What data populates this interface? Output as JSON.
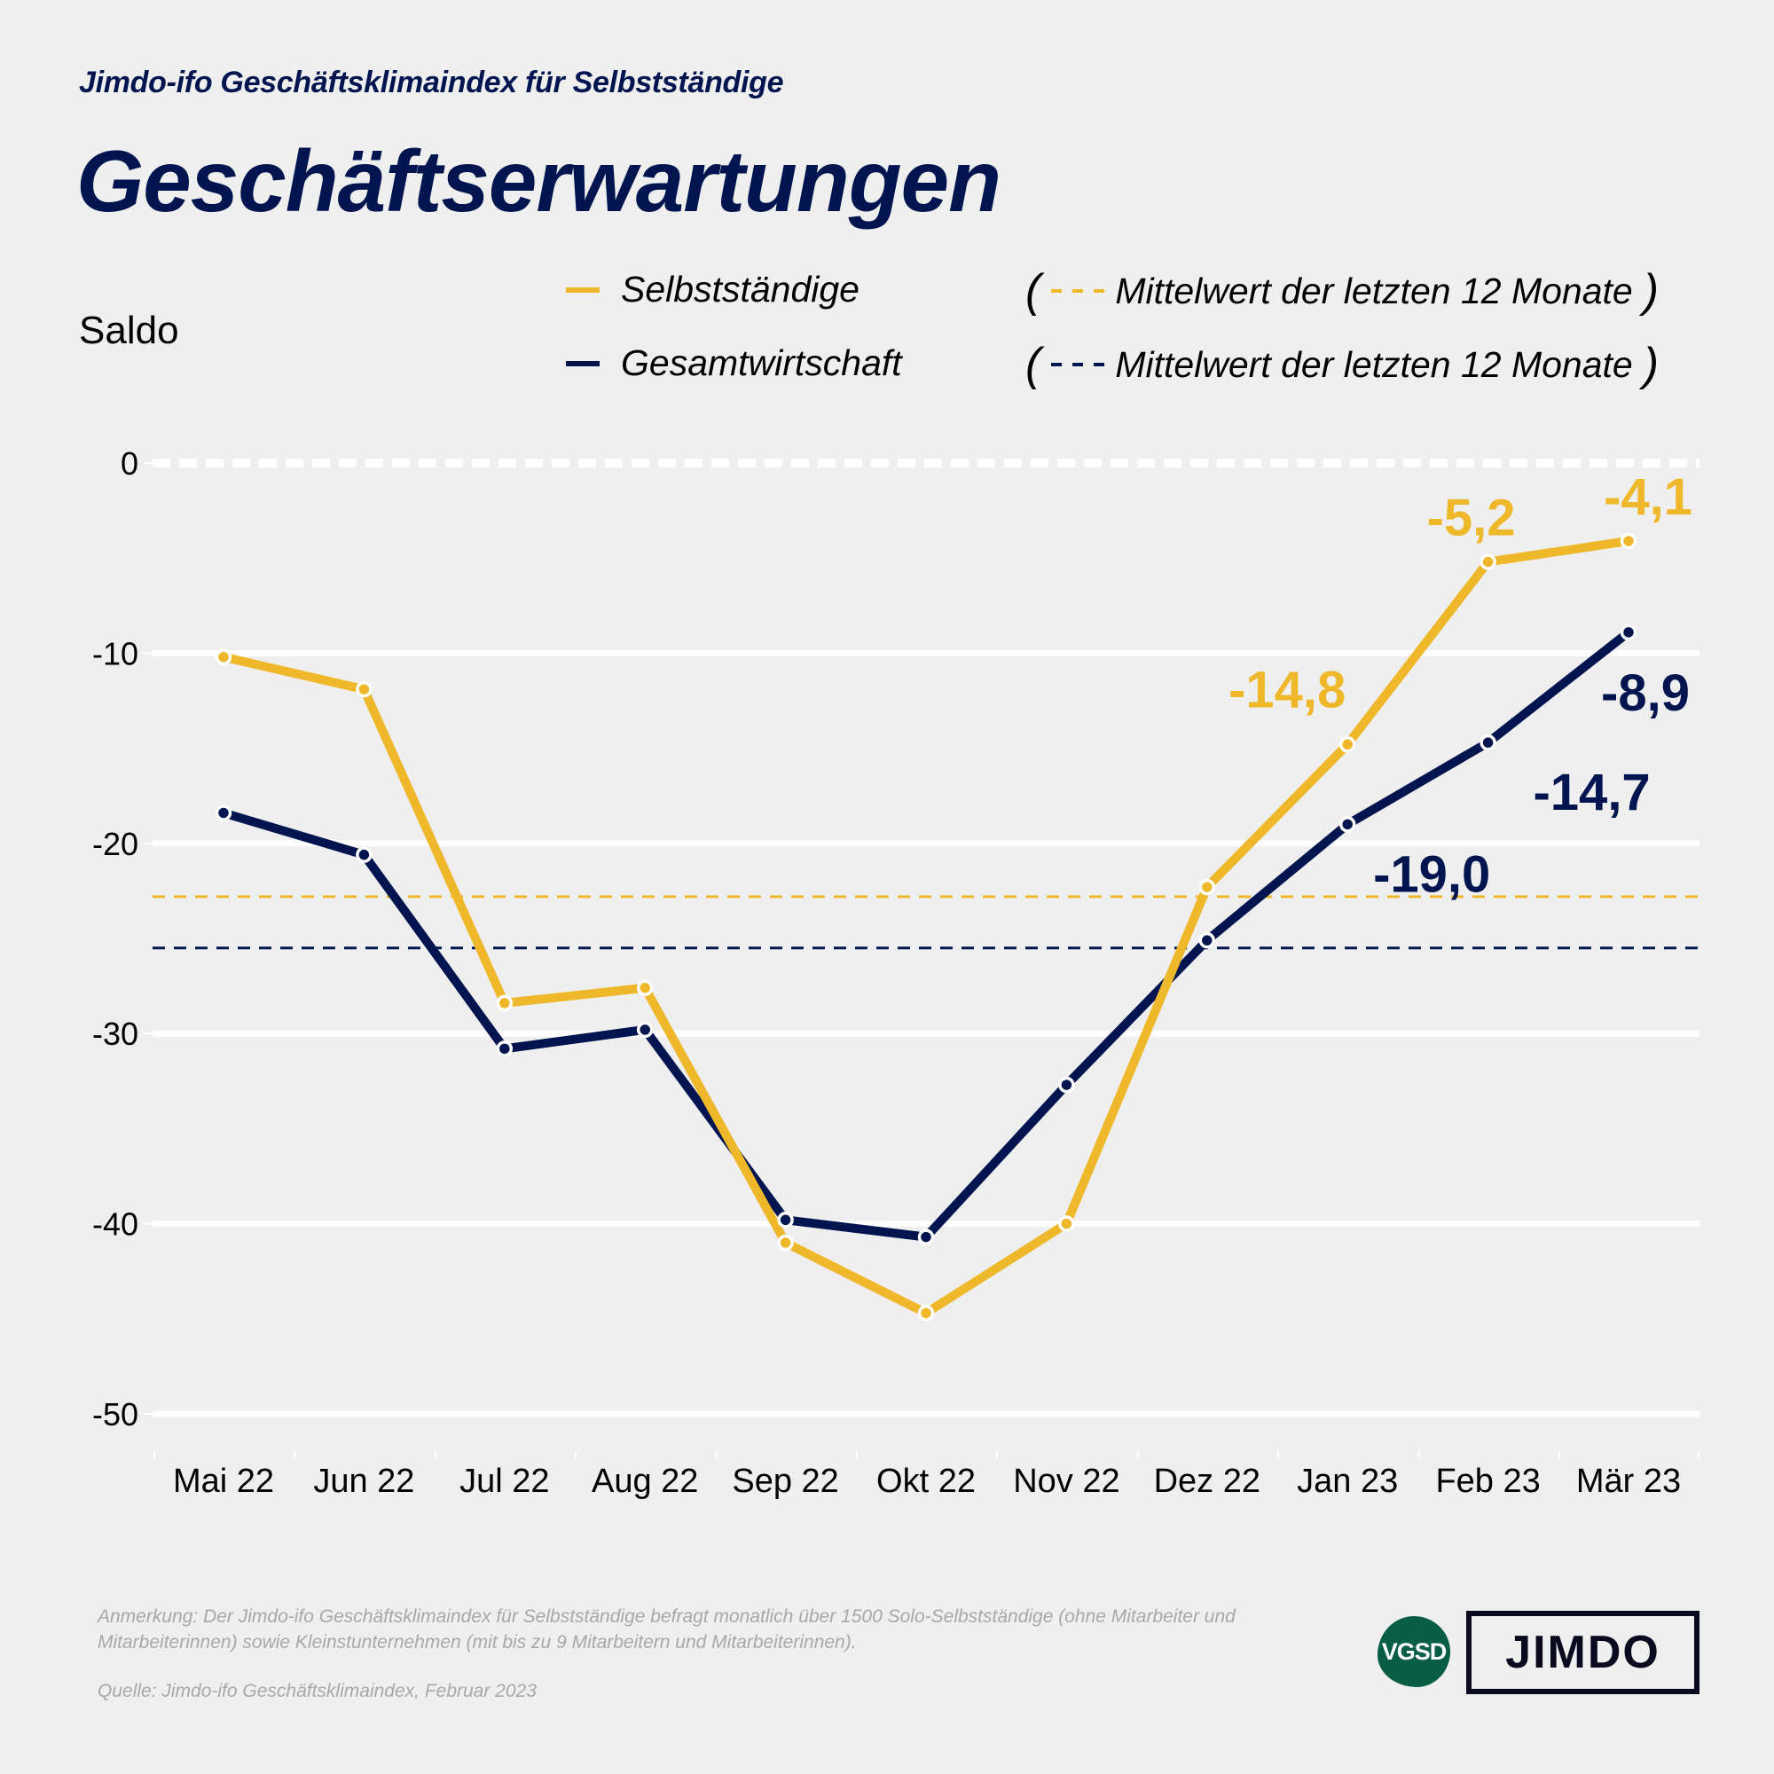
{
  "header": {
    "subtitle": "Jimdo-ifo Geschäftsklimaindex für Selbstständige",
    "title": "Geschäftserwartungen"
  },
  "axis": {
    "ylabel": "Saldo"
  },
  "legend": {
    "series": [
      {
        "label": "Selbstständige",
        "color": "#efb82a"
      },
      {
        "label": "Gesamtwirtschaft",
        "color": "#001550"
      }
    ],
    "mean_label": "Mittelwert der letzten 12 Monate",
    "open_paren": "(",
    "close_paren": ")"
  },
  "chart_data": {
    "type": "line",
    "title": "Geschäftserwartungen",
    "xlabel": "",
    "ylabel": "Saldo",
    "ylim": [
      -50,
      0
    ],
    "yticks": [
      0,
      -10,
      -20,
      -30,
      -40,
      -50
    ],
    "ytick_labels": [
      "0",
      "-10",
      "-20",
      "-30",
      "-40",
      "-50"
    ],
    "grid": true,
    "legend_position": "top-right",
    "categories": [
      "Mai 22",
      "Jun 22",
      "Jul 22",
      "Aug 22",
      "Sep 22",
      "Okt 22",
      "Nov 22",
      "Dez 22",
      "Jan 23",
      "Feb 23",
      "Mär 23"
    ],
    "series": [
      {
        "name": "Selbstständige",
        "color": "#efb82a",
        "values": [
          -10.2,
          -11.9,
          -28.4,
          -27.6,
          -41.0,
          -44.7,
          -40.0,
          -22.3,
          -14.8,
          -5.2,
          -4.1
        ],
        "mean_12m": -22.8
      },
      {
        "name": "Gesamtwirtschaft",
        "color": "#001550",
        "values": [
          -18.4,
          -20.6,
          -30.8,
          -29.8,
          -39.8,
          -40.7,
          -32.7,
          -25.1,
          -19.0,
          -14.7,
          -8.9
        ],
        "mean_12m": -25.5
      }
    ],
    "annotations": [
      {
        "series": 0,
        "index": 8,
        "text": "-14,8"
      },
      {
        "series": 0,
        "index": 9,
        "text": "-5,2"
      },
      {
        "series": 0,
        "index": 10,
        "text": "-4,1"
      },
      {
        "series": 1,
        "index": 8,
        "text": "-19,0"
      },
      {
        "series": 1,
        "index": 9,
        "text": "-14,7"
      },
      {
        "series": 1,
        "index": 10,
        "text": "-8,9"
      }
    ]
  },
  "footer": {
    "note": "Anmerkung: Der Jimdo-ifo Geschäftsklimaindex für Selbstständige befragt monatlich über 1500 Solo-Selbstständige (ohne Mitarbeiter und Mitarbeiterinnen) sowie Kleinstunternehmen (mit bis zu 9 Mitarbeitern und Mitarbeiterinnen).",
    "source": "Quelle: Jimdo-ifo Geschäftsklimaindex, Februar 2023",
    "logos": {
      "vgsd": "VGSD",
      "jimdo": "JIMDO"
    }
  }
}
